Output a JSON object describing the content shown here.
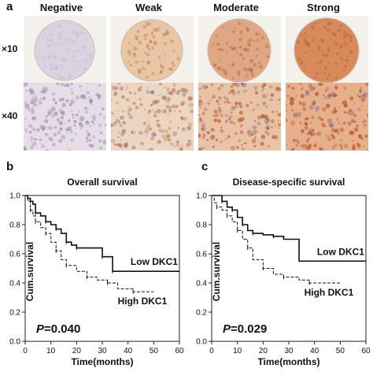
{
  "panel_a": {
    "letter": "a",
    "columns": [
      "Negative",
      "Weak",
      "Moderate",
      "Strong"
    ],
    "rows": [
      "×10",
      "×40"
    ],
    "stain_colors": [
      "#dcd3e0",
      "#e9c6a6",
      "#dea885",
      "#d98a5c"
    ]
  },
  "panel_b": {
    "letter": "b"
  },
  "panel_c": {
    "letter": "c"
  },
  "chart_data": [
    {
      "type": "line",
      "title": "Overall survival",
      "xlabel": "Time(months)",
      "ylabel": "Cum.survival",
      "xlim": [
        0,
        60
      ],
      "ylim": [
        0.0,
        1.0
      ],
      "xticks": [
        0,
        10,
        20,
        30,
        40,
        50,
        60
      ],
      "yticks": [
        0.0,
        0.2,
        0.4,
        0.6,
        0.8,
        1.0
      ],
      "annotation": {
        "italic": "P",
        "text": "=0.040"
      },
      "series": [
        {
          "name": "Low DKC1",
          "style": "solid",
          "x": [
            0,
            1,
            2,
            3,
            4,
            6,
            8,
            10,
            12,
            14,
            16,
            18,
            20,
            25,
            30,
            34,
            34,
            60
          ],
          "y": [
            1.0,
            0.98,
            0.96,
            0.94,
            0.88,
            0.86,
            0.82,
            0.8,
            0.77,
            0.74,
            0.68,
            0.66,
            0.64,
            0.64,
            0.58,
            0.58,
            0.48,
            0.48
          ]
        },
        {
          "name": "High DKC1",
          "style": "dashed",
          "x": [
            0,
            1,
            2,
            3,
            4,
            6,
            8,
            10,
            12,
            14,
            16,
            20,
            24,
            28,
            32,
            36,
            42,
            50
          ],
          "y": [
            1.0,
            0.96,
            0.9,
            0.86,
            0.82,
            0.78,
            0.74,
            0.68,
            0.62,
            0.56,
            0.52,
            0.48,
            0.44,
            0.42,
            0.4,
            0.36,
            0.34,
            0.34
          ]
        }
      ]
    },
    {
      "type": "line",
      "title": "Disease-specific survival",
      "xlabel": "Time(months)",
      "ylabel": "Cum.survival",
      "xlim": [
        0,
        60
      ],
      "ylim": [
        0.0,
        1.0
      ],
      "xticks": [
        0,
        10,
        20,
        30,
        40,
        50,
        60
      ],
      "yticks": [
        0.0,
        0.2,
        0.4,
        0.6,
        0.8,
        1.0
      ],
      "annotation": {
        "italic": "P",
        "text": "=0.029"
      },
      "series": [
        {
          "name": "Low DKC1",
          "style": "solid",
          "x": [
            0,
            2,
            4,
            6,
            8,
            10,
            12,
            14,
            16,
            20,
            24,
            28,
            34,
            34,
            60
          ],
          "y": [
            1.0,
            1.0,
            0.96,
            0.92,
            0.9,
            0.85,
            0.8,
            0.76,
            0.74,
            0.73,
            0.72,
            0.7,
            0.68,
            0.55,
            0.55
          ]
        },
        {
          "name": "High DKC1",
          "style": "dashed",
          "x": [
            0,
            1,
            2,
            4,
            6,
            8,
            10,
            12,
            14,
            16,
            20,
            24,
            28,
            34,
            38,
            50
          ],
          "y": [
            1.0,
            0.95,
            0.92,
            0.9,
            0.86,
            0.82,
            0.76,
            0.7,
            0.64,
            0.56,
            0.5,
            0.46,
            0.44,
            0.42,
            0.4,
            0.4
          ]
        }
      ]
    }
  ]
}
